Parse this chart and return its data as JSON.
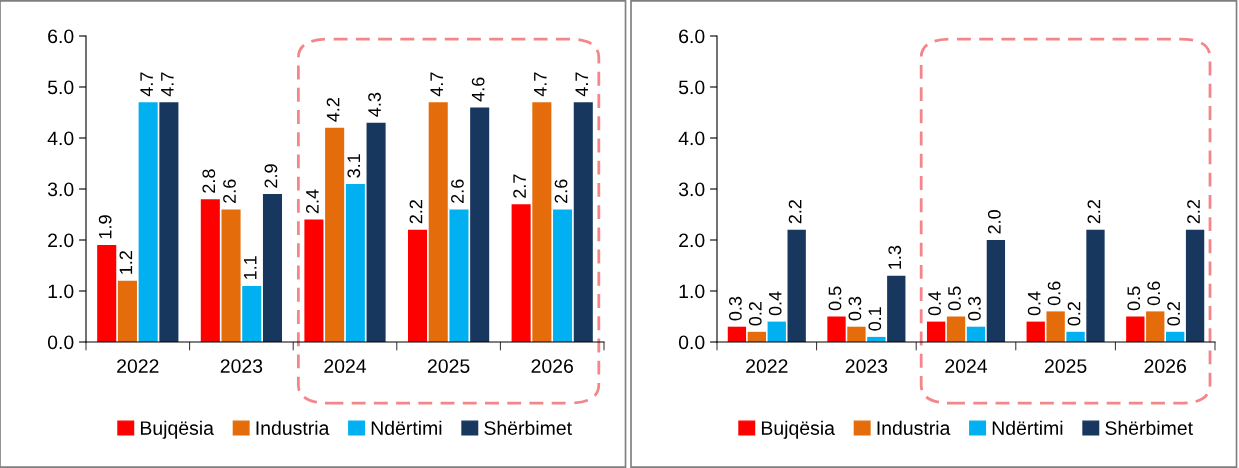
{
  "chart_data": [
    {
      "type": "bar",
      "categories": [
        "2022",
        "2023",
        "2024",
        "2025",
        "2026"
      ],
      "ylim": [
        0,
        6
      ],
      "yticks": [
        {
          "value": 0,
          "label": "0.0"
        },
        {
          "value": 1,
          "label": "1.0"
        },
        {
          "value": 2,
          "label": "2.0"
        },
        {
          "value": 3,
          "label": "3.0"
        },
        {
          "value": 4,
          "label": "4.0"
        },
        {
          "value": 5,
          "label": "5.0"
        },
        {
          "value": 6,
          "label": "6.0"
        }
      ],
      "legend": "bottom",
      "grid": false,
      "series": [
        {
          "name": "Bujqësia",
          "color": "#ff0000",
          "values": [
            1.9,
            2.8,
            2.4,
            2.2,
            2.7
          ],
          "value_labels": [
            "1.9",
            "2.8",
            "2.4",
            "2.2",
            "2.7"
          ]
        },
        {
          "name": "Industria",
          "color": "#e46c0a",
          "values": [
            1.2,
            2.6,
            4.2,
            4.7,
            4.7
          ],
          "value_labels": [
            "1.2",
            "2.6",
            "4.2",
            "4.7",
            "4.7"
          ]
        },
        {
          "name": "Ndërtimi",
          "color": "#00b0f0",
          "values": [
            4.7,
            1.1,
            3.1,
            2.6,
            2.6
          ],
          "value_labels": [
            "4.7",
            "1.1",
            "3.1",
            "2.6",
            "2.6"
          ]
        },
        {
          "name": "Shërbimet",
          "color": "#17375e",
          "values": [
            4.7,
            2.9,
            4.3,
            4.6,
            4.7
          ],
          "value_labels": [
            "4.7",
            "2.9",
            "4.3",
            "4.6",
            "4.7"
          ]
        }
      ]
    },
    {
      "type": "bar",
      "categories": [
        "2022",
        "2023",
        "2024",
        "2025",
        "2026"
      ],
      "ylim": [
        0,
        6
      ],
      "yticks": [
        {
          "value": 0,
          "label": "0.0"
        },
        {
          "value": 1,
          "label": "1.0"
        },
        {
          "value": 2,
          "label": "2.0"
        },
        {
          "value": 3,
          "label": "3.0"
        },
        {
          "value": 4,
          "label": "4.0"
        },
        {
          "value": 5,
          "label": "5.0"
        },
        {
          "value": 6,
          "label": "6.0"
        }
      ],
      "legend": "bottom",
      "grid": false,
      "series": [
        {
          "name": "Bujqësia",
          "color": "#ff0000",
          "values": [
            0.3,
            0.5,
            0.4,
            0.4,
            0.5
          ],
          "value_labels": [
            "0.3",
            "0.5",
            "0.4",
            "0.4",
            "0.5"
          ]
        },
        {
          "name": "Industria",
          "color": "#e46c0a",
          "values": [
            0.2,
            0.3,
            0.5,
            0.6,
            0.6
          ],
          "value_labels": [
            "0.2",
            "0.3",
            "0.5",
            "0.6",
            "0.6"
          ]
        },
        {
          "name": "Ndërtimi",
          "color": "#00b0f0",
          "values": [
            0.4,
            0.1,
            0.3,
            0.2,
            0.2
          ],
          "value_labels": [
            "0.4",
            "0.1",
            "0.3",
            "0.2",
            "0.2"
          ]
        },
        {
          "name": "Shërbimet",
          "color": "#17375e",
          "values": [
            2.2,
            1.3,
            2.0,
            2.2,
            2.2
          ],
          "value_labels": [
            "2.2",
            "1.3",
            "2.0",
            "2.2",
            "2.2"
          ]
        }
      ]
    }
  ]
}
